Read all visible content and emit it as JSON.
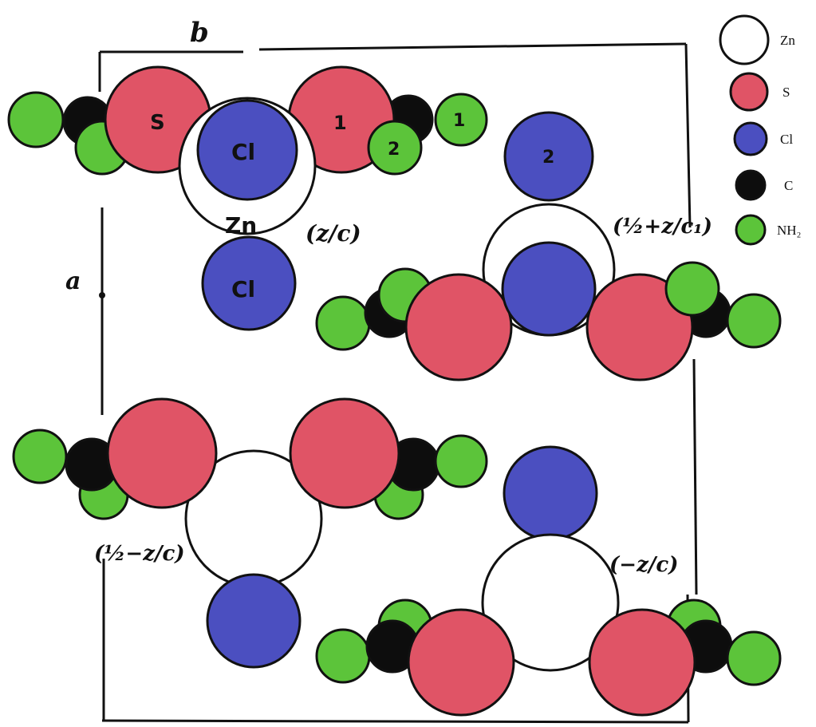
{
  "colors": {
    "zn": "#ffffff",
    "s": "#e05466",
    "cl": "#4b4fc0",
    "c": "#0d0d0d",
    "nh2": "#5cc43a"
  },
  "axes": {
    "b_label": "b",
    "a_label": "a"
  },
  "labels": {
    "s_atom": "S",
    "s_number": "1",
    "nh2_number_1": "1",
    "nh2_number_2": "2",
    "cl_top": "Cl",
    "zn_top": "Zn",
    "cl_lower": "Cl",
    "cl_number": "2",
    "z_top_left": "(z/c)",
    "z_top_right": "(½+z/c₁)",
    "z_bottom_left": "(½−z/c)",
    "z_bottom_right": "(−z/c)"
  },
  "legend": [
    {
      "key": "zn",
      "label": "Zn"
    },
    {
      "key": "s",
      "label": "S"
    },
    {
      "key": "cl",
      "label": "Cl"
    },
    {
      "key": "c",
      "label": "C"
    },
    {
      "key": "nh2",
      "label": "NH₂"
    }
  ]
}
